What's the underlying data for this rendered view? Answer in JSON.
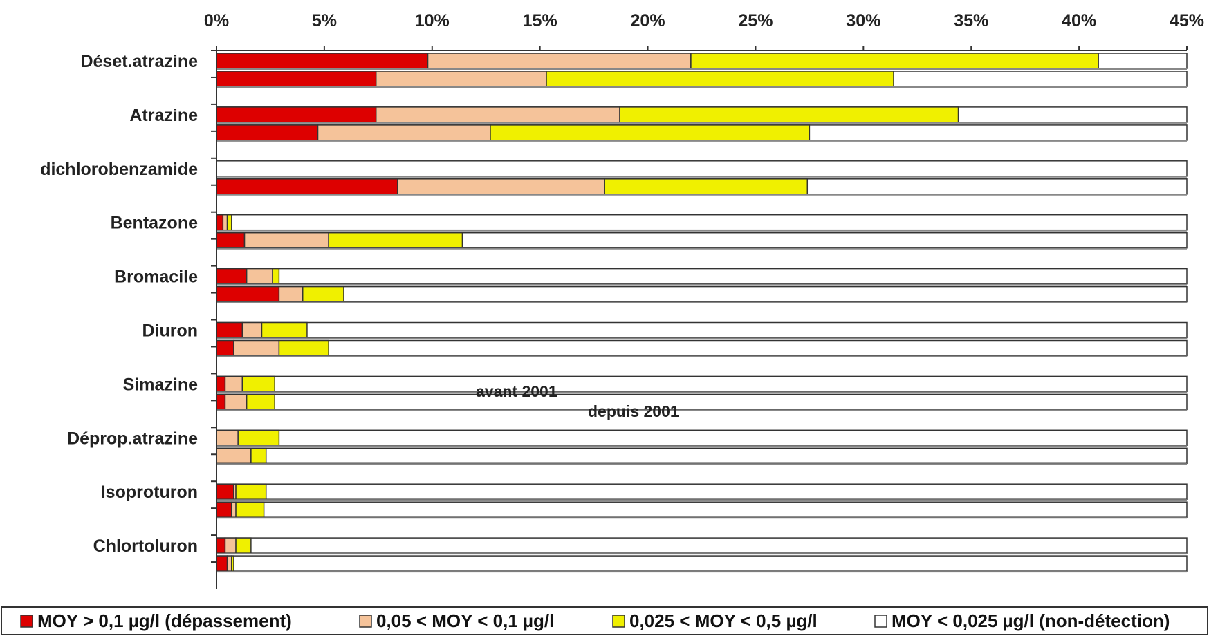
{
  "chart_data": {
    "type": "bar",
    "orientation": "horizontal",
    "stacked": true,
    "title": "",
    "xlabel": "",
    "ylabel": "",
    "xlim": [
      0,
      45
    ],
    "x_ticks": [
      "0%",
      "5%",
      "10%",
      "15%",
      "20%",
      "25%",
      "30%",
      "35%",
      "40%",
      "45%"
    ],
    "legend_position": "bottom",
    "series": [
      {
        "name": "MOY > 0,1 µg/l (dépassement)",
        "color": "#dd0000"
      },
      {
        "name": "0,05 < MOY < 0,1 µg/l",
        "color": "#f5c39a"
      },
      {
        "name": "0,025 < MOY < 0,5 µg/l",
        "color": "#f0f000"
      },
      {
        "name": "MOY < 0,025 µg/l (non-détection)",
        "color": "#ffffff"
      }
    ],
    "annotations": [
      "avant 2001",
      "depuis 2001"
    ],
    "categories": [
      {
        "label": "Déset.atrazine",
        "avant": [
          9.8,
          12.2,
          18.9
        ],
        "depuis": [
          7.4,
          7.9,
          16.1
        ]
      },
      {
        "label": "Atrazine",
        "avant": [
          7.4,
          11.3,
          15.7
        ],
        "depuis": [
          4.7,
          8.0,
          14.8
        ]
      },
      {
        "label": "dichlorobenzamide",
        "avant": [
          0,
          0,
          0
        ],
        "depuis": [
          8.4,
          9.6,
          9.4
        ]
      },
      {
        "label": "Bentazone",
        "avant": [
          0.3,
          0.2,
          0.2
        ],
        "depuis": [
          1.3,
          3.9,
          6.2
        ]
      },
      {
        "label": "Bromacile",
        "avant": [
          1.4,
          1.2,
          0.3
        ],
        "depuis": [
          2.9,
          1.1,
          1.9
        ]
      },
      {
        "label": "Diuron",
        "avant": [
          1.2,
          0.9,
          2.1
        ],
        "depuis": [
          0.8,
          2.1,
          2.3
        ]
      },
      {
        "label": "Simazine",
        "avant": [
          0.4,
          0.8,
          1.5
        ],
        "depuis": [
          0.4,
          1.0,
          1.3
        ]
      },
      {
        "label": "Déprop.atrazine",
        "avant": [
          0,
          1.0,
          1.9
        ],
        "depuis": [
          0,
          1.6,
          0.7
        ]
      },
      {
        "label": "Isoproturon",
        "avant": [
          0.8,
          0.1,
          1.4
        ],
        "depuis": [
          0.7,
          0.2,
          1.3
        ]
      },
      {
        "label": "Chlortoluron",
        "avant": [
          0.4,
          0.5,
          0.7
        ],
        "depuis": [
          0.5,
          0.2,
          0.1
        ]
      }
    ]
  }
}
